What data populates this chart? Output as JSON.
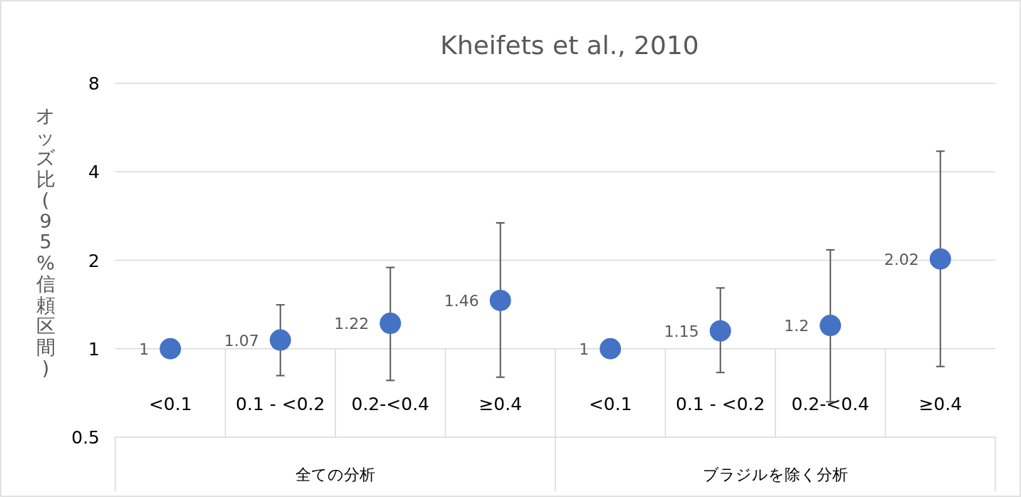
{
  "chart_data": {
    "type": "scatter",
    "title": "Kheifets et al., 2010",
    "ylabel": "オッズ比(95%信頼区間)",
    "categories": [
      "<0.1",
      "0.1 - <0.2",
      "0.2-<0.4",
      "≥0.4",
      "<0.1",
      "0.1 - <0.2",
      "0.2-<0.4",
      "≥0.4"
    ],
    "series": [
      {
        "color": "#4472c4",
        "values": [
          1,
          1.07,
          1.22,
          1.46,
          1,
          1.15,
          1.2,
          2.02
        ],
        "errors": [
          null,
          [
            0.81,
            1.41
          ],
          [
            0.78,
            1.89
          ],
          [
            0.8,
            2.68
          ],
          null,
          [
            0.83,
            1.61
          ],
          [
            0.66,
            2.17
          ],
          [
            0.87,
            4.7
          ]
        ]
      }
    ],
    "annotations": [
      "全ての分析",
      "ブラジルを除く分析"
    ],
    "log": "y",
    "ylim": [
      0.5,
      8
    ],
    "yticks": [
      0.5,
      1,
      2,
      4,
      8
    ],
    "grid": "y",
    "marker": "circle",
    "data_labels": true
  }
}
